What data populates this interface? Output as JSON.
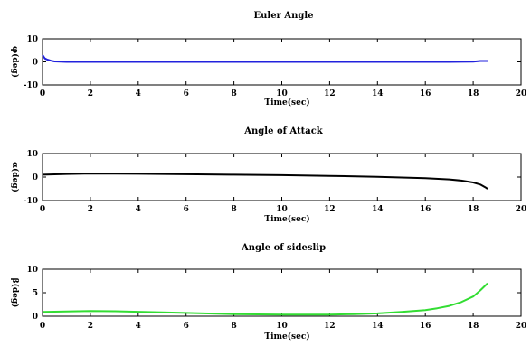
{
  "chart_data": [
    {
      "type": "line",
      "title": "Euler Angle",
      "xlabel": "Time(sec)",
      "ylabel": "φ(deg)",
      "xlim": [
        0,
        20
      ],
      "ylim": [
        -10,
        10
      ],
      "xticks": [
        0,
        2,
        4,
        6,
        8,
        10,
        12,
        14,
        16,
        18,
        20
      ],
      "yticks": [
        -10,
        0,
        10
      ],
      "grid": false,
      "series": [
        {
          "color": "#2222dd",
          "x": [
            0,
            0.1,
            0.2,
            0.35,
            0.5,
            1,
            2,
            4,
            6,
            8,
            10,
            12,
            14,
            16,
            17,
            18,
            18.3,
            18.6
          ],
          "y": [
            3,
            1.5,
            1,
            0.5,
            0.2,
            0,
            0,
            0,
            0,
            0,
            0,
            0,
            0,
            0,
            0,
            0.1,
            0.4,
            0.4
          ]
        }
      ]
    },
    {
      "type": "line",
      "title": "Angle of Attack",
      "xlabel": "Time(sec)",
      "ylabel": "α(deg)",
      "xlim": [
        0,
        20
      ],
      "ylim": [
        -10,
        10
      ],
      "xticks": [
        0,
        2,
        4,
        6,
        8,
        10,
        12,
        14,
        16,
        18,
        20
      ],
      "yticks": [
        -10,
        0,
        10
      ],
      "grid": false,
      "series": [
        {
          "color": "#000000",
          "x": [
            0,
            1,
            2,
            4,
            6,
            8,
            10,
            12,
            14,
            15,
            16,
            17,
            17.5,
            18,
            18.3,
            18.5,
            18.6
          ],
          "y": [
            1.0,
            1.3,
            1.5,
            1.4,
            1.2,
            1.0,
            0.8,
            0.5,
            0.1,
            -0.2,
            -0.5,
            -1.0,
            -1.5,
            -2.3,
            -3.2,
            -4.3,
            -5.0
          ]
        }
      ]
    },
    {
      "type": "line",
      "title": "Angle of sideslip",
      "xlabel": "Time(sec)",
      "ylabel": "β(deg)",
      "xlim": [
        0,
        20
      ],
      "ylim": [
        0,
        10
      ],
      "xticks": [
        0,
        2,
        4,
        6,
        8,
        10,
        12,
        14,
        16,
        18,
        20
      ],
      "yticks": [
        0,
        5,
        10
      ],
      "grid": false,
      "series": [
        {
          "color": "#33dd33",
          "x": [
            0,
            1,
            2,
            3,
            4,
            6,
            8,
            10,
            12,
            13,
            14,
            15,
            16,
            16.5,
            17,
            17.5,
            18,
            18.3,
            18.6
          ],
          "y": [
            0.9,
            1.0,
            1.1,
            1.05,
            0.95,
            0.7,
            0.45,
            0.35,
            0.35,
            0.45,
            0.6,
            0.9,
            1.3,
            1.7,
            2.2,
            3.0,
            4.2,
            5.5,
            7.0
          ]
        }
      ]
    }
  ]
}
